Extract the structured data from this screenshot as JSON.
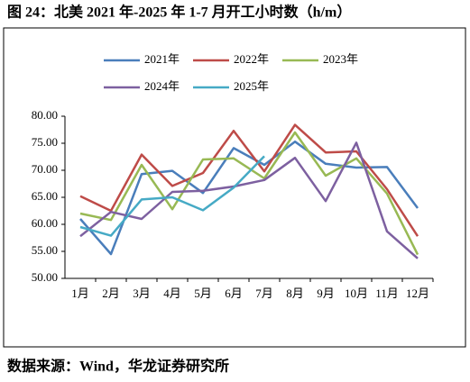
{
  "chart_data": {
    "type": "line",
    "title": "图 24：北美 2021 年-2025 年 1-7 月开工小时数（h/m）",
    "source": "数据来源：Wind，华龙证券研究所",
    "categories": [
      "1月",
      "2月",
      "3月",
      "4月",
      "5月",
      "6月",
      "7月",
      "8月",
      "9月",
      "10月",
      "11月",
      "12月"
    ],
    "series": [
      {
        "name": "2021年",
        "color": "#4a7ebb",
        "values": [
          61.0,
          54.5,
          69.3,
          69.9,
          65.8,
          74.1,
          71.0,
          75.3,
          71.2,
          70.5,
          70.6,
          63.0
        ]
      },
      {
        "name": "2022年",
        "color": "#be4b48",
        "values": [
          65.2,
          62.5,
          72.9,
          67.1,
          69.5,
          77.3,
          69.8,
          78.4,
          73.3,
          73.5,
          66.5,
          57.8
        ]
      },
      {
        "name": "2023年",
        "color": "#98b954",
        "values": [
          62.0,
          60.8,
          71.0,
          62.8,
          72.0,
          72.2,
          68.5,
          77.0,
          69.0,
          72.2,
          65.7,
          54.4
        ]
      },
      {
        "name": "2024年",
        "color": "#7d60a0",
        "values": [
          57.8,
          62.3,
          61.0,
          66.0,
          66.2,
          67.0,
          68.2,
          72.3,
          64.3,
          75.1,
          58.7,
          53.7
        ]
      },
      {
        "name": "2025年",
        "color": "#46aac5",
        "values": [
          59.5,
          57.9,
          64.6,
          65.0,
          62.6,
          66.8,
          72.6,
          null,
          null,
          null,
          null,
          null
        ]
      }
    ],
    "ylim": [
      50,
      80
    ],
    "yticks": [
      {
        "value": 50,
        "label": "50.00"
      },
      {
        "value": 55,
        "label": "55.00"
      },
      {
        "value": 60,
        "label": "60.00"
      },
      {
        "value": 65,
        "label": "65.00"
      },
      {
        "value": 70,
        "label": "70.00"
      },
      {
        "value": 75,
        "label": "75.00"
      },
      {
        "value": 80,
        "label": "80.00"
      }
    ],
    "grid": false
  }
}
